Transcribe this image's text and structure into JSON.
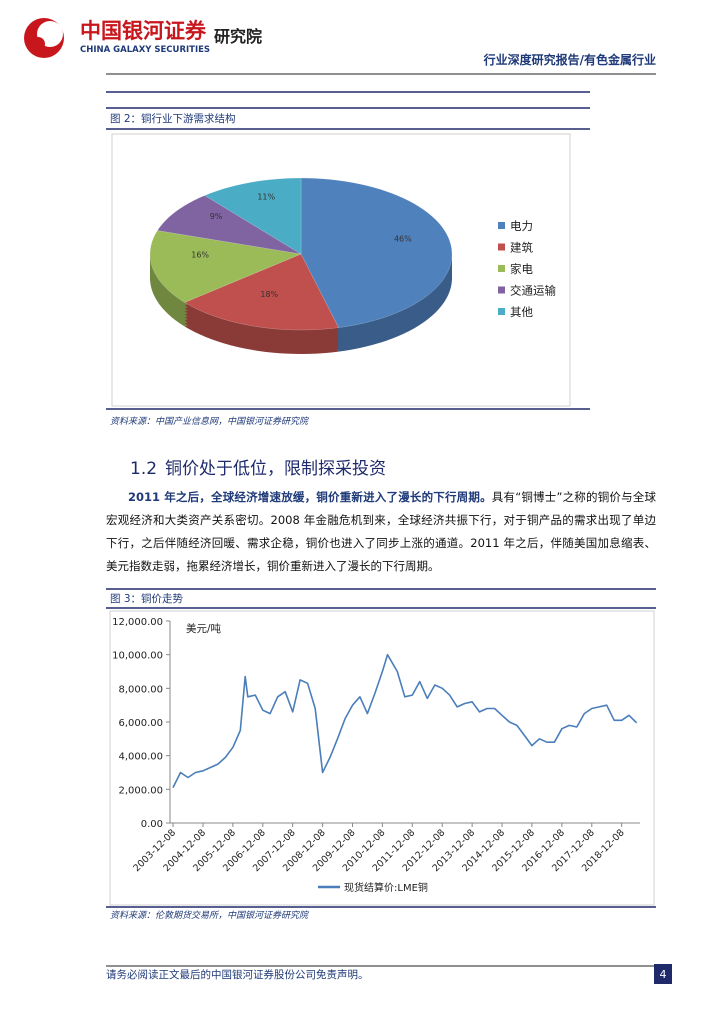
{
  "header": {
    "brand_cn": "中国银河证券",
    "brand_en": "CHINA GALAXY SECURITIES",
    "institute": "研究院",
    "report_type": "行业深度研究报告/有色金属行业"
  },
  "figure_2": {
    "caption": "图 2：铜行业下游需求结构",
    "source": "资料来源：中国产业信息网，中国银河证券研究院"
  },
  "section": {
    "number": "1.2",
    "title": "铜价处于低位，限制探采投资"
  },
  "paragraph": {
    "lead": "2011 年之后，全球经济增速放缓，铜价重新进入了漫长的下行周期。",
    "body": "具有“铜博士”之称的铜价与全球宏观经济和大类资产关系密切。2008 年金融危机到来，全球经济共振下行，对于铜产品的需求出现了单边下行，之后伴随经济回暖、需求企稳，铜价也进入了同步上涨的通道。2011 年之后，伴随美国加息缩表、美元指数走弱，拖累经济增长，铜价重新进入了漫长的下行周期。"
  },
  "figure_3": {
    "caption": "图 3：铜价走势",
    "source": "资料来源：伦敦期货交易所，中国银河证券研究院"
  },
  "footer": {
    "disclaimer": "请务必阅读正文最后的中国银河证券股份公司免责声明。",
    "page": 4
  },
  "chart_data": [
    {
      "type": "pie",
      "categories": [
        "电力",
        "建筑",
        "家电",
        "交通运输",
        "其他"
      ],
      "values": [
        46,
        18,
        16,
        9,
        11
      ],
      "value_labels": [
        "46%",
        "18%",
        "16%",
        "9%",
        "11%"
      ],
      "colors": [
        "#4f81bd",
        "#c0504d",
        "#9bbb59",
        "#8064a2",
        "#4bacc6"
      ],
      "legend": "right"
    },
    {
      "type": "line",
      "ylabel": "美元/吨",
      "x": [
        "2003-12-08",
        "2004-03-08",
        "2004-06-08",
        "2004-09-08",
        "2004-12-08",
        "2005-03-08",
        "2005-06-08",
        "2005-09-08",
        "2005-12-08",
        "2006-03-08",
        "2006-05-08",
        "2006-06-08",
        "2006-09-08",
        "2006-12-08",
        "2007-03-08",
        "2007-06-08",
        "2007-09-08",
        "2007-12-08",
        "2008-03-08",
        "2008-06-08",
        "2008-09-08",
        "2008-12-08",
        "2009-03-08",
        "2009-06-08",
        "2009-09-08",
        "2009-12-08",
        "2010-03-08",
        "2010-06-08",
        "2010-09-08",
        "2010-12-08",
        "2011-02-08",
        "2011-06-08",
        "2011-09-08",
        "2011-12-08",
        "2012-03-08",
        "2012-06-08",
        "2012-09-08",
        "2012-12-08",
        "2013-03-08",
        "2013-06-08",
        "2013-09-08",
        "2013-12-08",
        "2014-03-08",
        "2014-06-08",
        "2014-09-08",
        "2014-12-08",
        "2015-03-08",
        "2015-06-08",
        "2015-09-08",
        "2015-12-08",
        "2016-03-08",
        "2016-06-08",
        "2016-09-08",
        "2016-12-08",
        "2017-03-08",
        "2017-06-08",
        "2017-09-08",
        "2017-12-08",
        "2018-03-08",
        "2018-06-08",
        "2018-09-08",
        "2018-12-08",
        "2019-03-08",
        "2019-06-08"
      ],
      "series": [
        {
          "name": "现货结算价:LME铜",
          "color": "#4a7ebb",
          "values": [
            2100,
            3000,
            2700,
            3000,
            3100,
            3300,
            3500,
            3900,
            4500,
            5500,
            8700,
            7500,
            7600,
            6700,
            6500,
            7500,
            7800,
            6600,
            8500,
            8300,
            6800,
            3000,
            3900,
            5000,
            6200,
            7000,
            7500,
            6500,
            7700,
            9000,
            10000,
            9000,
            7500,
            7600,
            8400,
            7400,
            8200,
            8000,
            7600,
            6900,
            7100,
            7200,
            6600,
            6800,
            6800,
            6400,
            6000,
            5800,
            5200,
            4600,
            5000,
            4800,
            4800,
            5600,
            5800,
            5700,
            6500,
            6800,
            6900,
            7000,
            6100,
            6100,
            6400,
            5950
          ]
        }
      ],
      "xlim": [
        "2003-11-01",
        "2019-07-20"
      ],
      "xticks": [
        "2003-12-08",
        "2004-12-08",
        "2005-12-08",
        "2006-12-08",
        "2007-12-08",
        "2008-12-08",
        "2009-12-08",
        "2010-12-08",
        "2011-12-08",
        "2012-12-08",
        "2013-12-08",
        "2014-12-08",
        "2015-12-08",
        "2016-12-08",
        "2017-12-08",
        "2018-12-08"
      ],
      "ylim": [
        0,
        12000
      ],
      "yticks": [
        {
          "value": 0,
          "label": "0.00"
        },
        {
          "value": 2000,
          "label": "2,000.00"
        },
        {
          "value": 4000,
          "label": "4,000.00"
        },
        {
          "value": 6000,
          "label": "6,000.00"
        },
        {
          "value": 8000,
          "label": "8,000.00"
        },
        {
          "value": 10000,
          "label": "10,000.00"
        },
        {
          "value": 12000,
          "label": "12,000.00"
        }
      ],
      "legend": "bottom"
    }
  ]
}
